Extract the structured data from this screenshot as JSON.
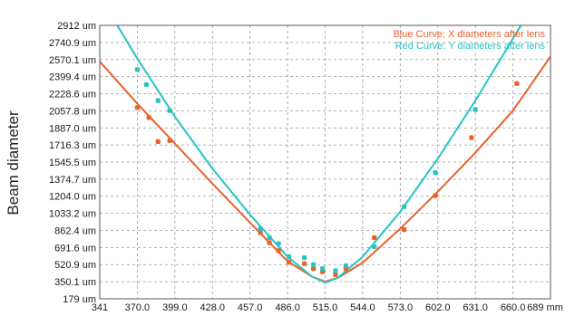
{
  "chart_data": {
    "type": "scatter",
    "outer_ylabel": "Beam diameter",
    "xlim": [
      341,
      689
    ],
    "ylim": [
      179,
      2912
    ],
    "x_tick_labels": [
      "341",
      "370.0",
      "399.0",
      "428.0",
      "457.0",
      "486.0",
      "515.0",
      "544.0",
      "573.0",
      "602.0",
      "631.0",
      "660.0",
      "689 mm"
    ],
    "x_tick_values": [
      341,
      370,
      399,
      428,
      457,
      486,
      515,
      544,
      573,
      602,
      631,
      660,
      689
    ],
    "y_tick_labels": [
      "179 um",
      "350.1 um",
      "520.9 um",
      "691.6 um",
      "862.4 um",
      "1033.2 um",
      "1204.0 um",
      "1374.7 um",
      "1545.5 um",
      "1716.3 um",
      "1887.0 um",
      "2057.8 um",
      "2228.6 um",
      "2399.4 um",
      "2570.1 um",
      "2740.9 um",
      "2912 um"
    ],
    "y_tick_values": [
      179,
      350.1,
      520.9,
      691.6,
      862.4,
      1033.2,
      1204.0,
      1374.7,
      1545.5,
      1716.3,
      1887.0,
      2057.8,
      2228.6,
      2399.4,
      2570.1,
      2740.9,
      2912
    ],
    "grid": true,
    "legend_position": "top-right",
    "colors": {
      "x_series": "#e8622a",
      "y_series": "#27c4c4",
      "grid": "#9a9a9a",
      "frame": "#5a5a5a"
    },
    "series": [
      {
        "name": "Blue Curve: X diameters after lens",
        "color": "#e8622a",
        "points": [
          {
            "x": 370,
            "y": 2090
          },
          {
            "x": 379,
            "y": 1990
          },
          {
            "x": 386,
            "y": 1750
          },
          {
            "x": 395,
            "y": 1760
          },
          {
            "x": 465,
            "y": 840
          },
          {
            "x": 472,
            "y": 740
          },
          {
            "x": 479,
            "y": 660
          },
          {
            "x": 487,
            "y": 545
          },
          {
            "x": 499,
            "y": 530
          },
          {
            "x": 506,
            "y": 480
          },
          {
            "x": 513,
            "y": 450
          },
          {
            "x": 523,
            "y": 420
          },
          {
            "x": 531,
            "y": 480
          },
          {
            "x": 553,
            "y": 790
          },
          {
            "x": 576,
            "y": 870
          },
          {
            "x": 600,
            "y": 1210
          },
          {
            "x": 628,
            "y": 1790
          },
          {
            "x": 663,
            "y": 2330
          }
        ],
        "fit_curve": [
          {
            "x": 341,
            "y": 2550
          },
          {
            "x": 370,
            "y": 2130
          },
          {
            "x": 399,
            "y": 1730
          },
          {
            "x": 428,
            "y": 1330
          },
          {
            "x": 457,
            "y": 940
          },
          {
            "x": 486,
            "y": 555
          },
          {
            "x": 505,
            "y": 400
          },
          {
            "x": 515,
            "y": 350
          },
          {
            "x": 525,
            "y": 390
          },
          {
            "x": 544,
            "y": 540
          },
          {
            "x": 573,
            "y": 880
          },
          {
            "x": 602,
            "y": 1250
          },
          {
            "x": 631,
            "y": 1640
          },
          {
            "x": 660,
            "y": 2060
          },
          {
            "x": 689,
            "y": 2600
          }
        ]
      },
      {
        "name": "Red Curve: Y diameters after lens",
        "color": "#27c4c4",
        "points": [
          {
            "x": 370,
            "y": 2470
          },
          {
            "x": 377,
            "y": 2320
          },
          {
            "x": 386,
            "y": 2160
          },
          {
            "x": 395,
            "y": 2060
          },
          {
            "x": 465,
            "y": 880
          },
          {
            "x": 472,
            "y": 790
          },
          {
            "x": 479,
            "y": 730
          },
          {
            "x": 487,
            "y": 600
          },
          {
            "x": 499,
            "y": 590
          },
          {
            "x": 506,
            "y": 520
          },
          {
            "x": 513,
            "y": 480
          },
          {
            "x": 523,
            "y": 460
          },
          {
            "x": 531,
            "y": 510
          },
          {
            "x": 553,
            "y": 700
          },
          {
            "x": 576,
            "y": 1100
          },
          {
            "x": 600,
            "y": 1440
          },
          {
            "x": 631,
            "y": 2070
          }
        ],
        "fit_curve": [
          {
            "x": 341,
            "y": 3200
          },
          {
            "x": 370,
            "y": 2580
          },
          {
            "x": 399,
            "y": 2000
          },
          {
            "x": 428,
            "y": 1480
          },
          {
            "x": 457,
            "y": 1020
          },
          {
            "x": 486,
            "y": 600
          },
          {
            "x": 505,
            "y": 400
          },
          {
            "x": 515,
            "y": 340
          },
          {
            "x": 525,
            "y": 390
          },
          {
            "x": 544,
            "y": 600
          },
          {
            "x": 573,
            "y": 1050
          },
          {
            "x": 602,
            "y": 1580
          },
          {
            "x": 631,
            "y": 2160
          },
          {
            "x": 660,
            "y": 2780
          },
          {
            "x": 689,
            "y": 3400
          }
        ]
      }
    ]
  }
}
